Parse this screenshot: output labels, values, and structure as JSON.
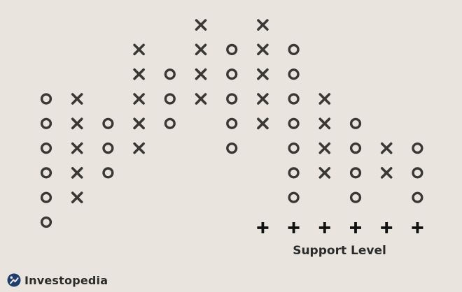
{
  "chart_data": {
    "type": "point-and-figure",
    "columns": [
      {
        "symbol": "O",
        "rows": [
          1,
          2,
          3,
          4,
          5,
          6
        ]
      },
      {
        "symbol": "X",
        "rows": [
          2,
          3,
          4,
          5,
          6
        ]
      },
      {
        "symbol": "O",
        "rows": [
          3,
          4,
          5
        ]
      },
      {
        "symbol": "X",
        "rows": [
          4,
          5,
          6,
          7,
          8
        ]
      },
      {
        "symbol": "O",
        "rows": [
          5,
          6,
          7
        ]
      },
      {
        "symbol": "X",
        "rows": [
          6,
          7,
          8,
          9
        ]
      },
      {
        "symbol": "O",
        "rows": [
          4,
          5,
          6,
          7,
          8
        ]
      },
      {
        "symbol": "X",
        "rows": [
          5,
          6,
          7,
          8,
          9
        ]
      },
      {
        "symbol": "O",
        "rows": [
          2,
          3,
          4,
          5,
          6,
          7,
          8
        ]
      },
      {
        "symbol": "X",
        "rows": [
          3,
          4,
          5,
          6
        ]
      },
      {
        "symbol": "O",
        "rows": [
          2,
          3,
          4,
          5
        ]
      },
      {
        "symbol": "X",
        "rows": [
          3,
          4
        ]
      },
      {
        "symbol": "O",
        "rows": [
          2,
          3,
          4
        ]
      }
    ],
    "support_level": {
      "label": "Support Level",
      "row": 1,
      "from_column": 7,
      "to_column": 12
    }
  },
  "brand": {
    "name": "Investopedia"
  },
  "colors": {
    "ink": "#3a3836",
    "background": "#e9e5de",
    "text": "#2b2b2b",
    "logo": "#1f3c6e"
  }
}
